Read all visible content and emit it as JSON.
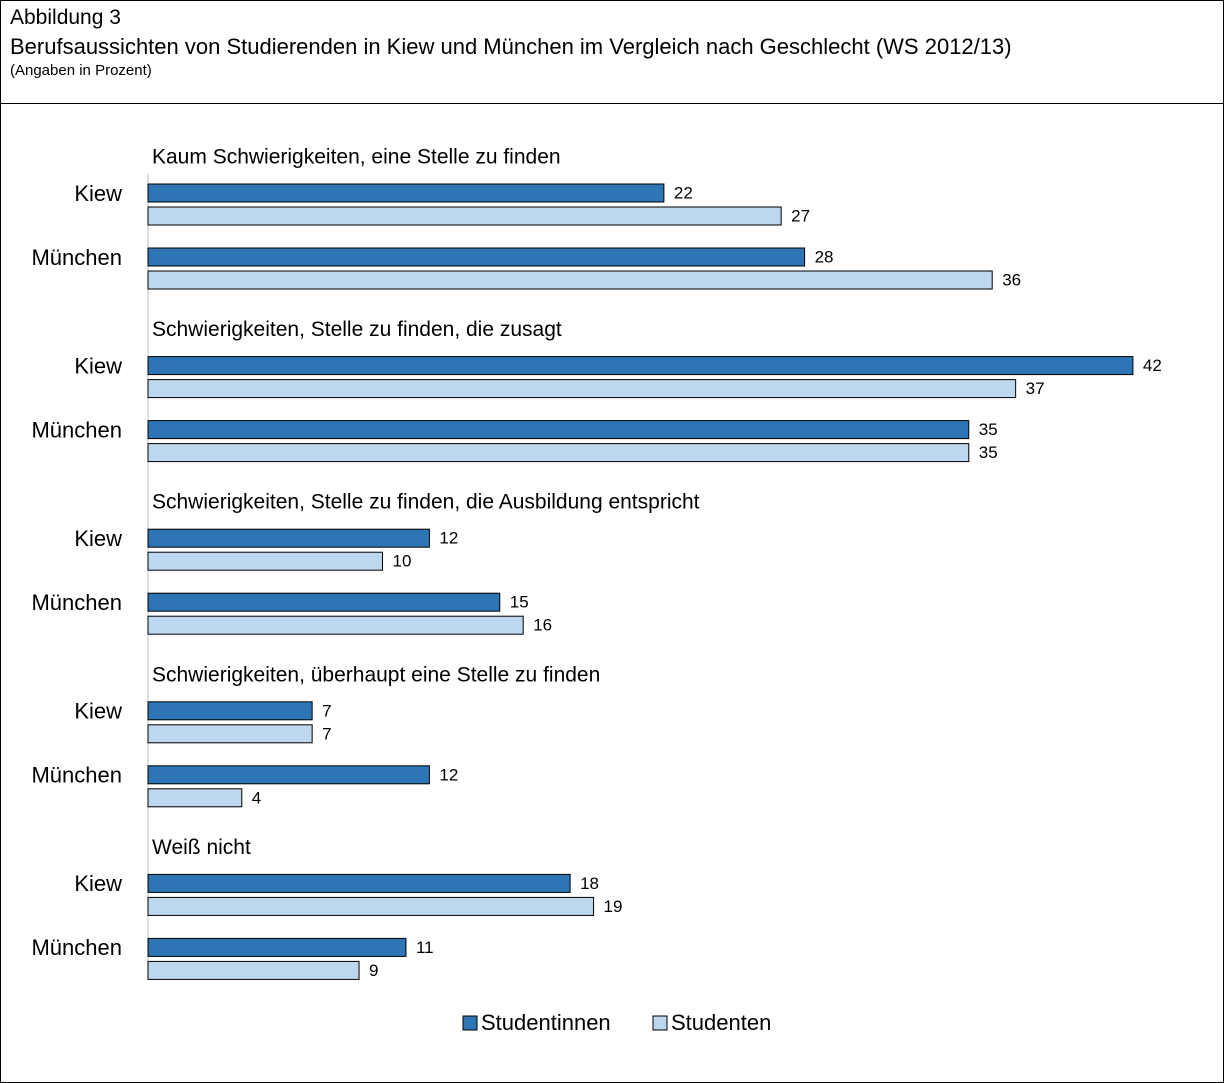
{
  "header": {
    "figure_label": "Abbildung 3",
    "title": "Berufsaussichten von Studierenden in Kiew und München im Vergleich nach Geschlecht (WS 2012/13)",
    "note": "(Angaben in Prozent)"
  },
  "colors": {
    "studentinnen": "#2E75B6",
    "studenten": "#BDD7EE",
    "bar_stroke": "#000000",
    "axis": "#BFBFBF"
  },
  "chart_data": {
    "type": "bar",
    "orientation": "horizontal",
    "title": "",
    "xlabel": "",
    "ylabel": "",
    "xlim": [
      0,
      42
    ],
    "grid": false,
    "legend_position": "bottom",
    "series": [
      {
        "name": "Studentinnen",
        "color": "#2E75B6"
      },
      {
        "name": "Studenten",
        "color": "#BDD7EE"
      }
    ],
    "groups": [
      {
        "label": "Kaum Schwierigkeiten, eine Stelle zu finden",
        "rows": [
          {
            "label": "Kiew",
            "values": [
              22,
              27
            ]
          },
          {
            "label": "München",
            "values": [
              28,
              36
            ]
          }
        ]
      },
      {
        "label": "Schwierigkeiten, Stelle zu finden, die zusagt",
        "rows": [
          {
            "label": "Kiew",
            "values": [
              42,
              37
            ]
          },
          {
            "label": "München",
            "values": [
              35,
              35
            ]
          }
        ]
      },
      {
        "label": "Schwierigkeiten, Stelle zu finden, die Ausbildung entspricht",
        "rows": [
          {
            "label": "Kiew",
            "values": [
              12,
              10
            ]
          },
          {
            "label": "München",
            "values": [
              15,
              16
            ]
          }
        ]
      },
      {
        "label": "Schwierigkeiten, überhaupt eine Stelle zu finden",
        "rows": [
          {
            "label": "Kiew",
            "values": [
              7,
              7
            ]
          },
          {
            "label": "München",
            "values": [
              12,
              4
            ]
          }
        ]
      },
      {
        "label": "Weiß nicht",
        "rows": [
          {
            "label": "Kiew",
            "values": [
              18,
              19
            ]
          },
          {
            "label": "München",
            "values": [
              11,
              9
            ]
          }
        ]
      }
    ]
  }
}
